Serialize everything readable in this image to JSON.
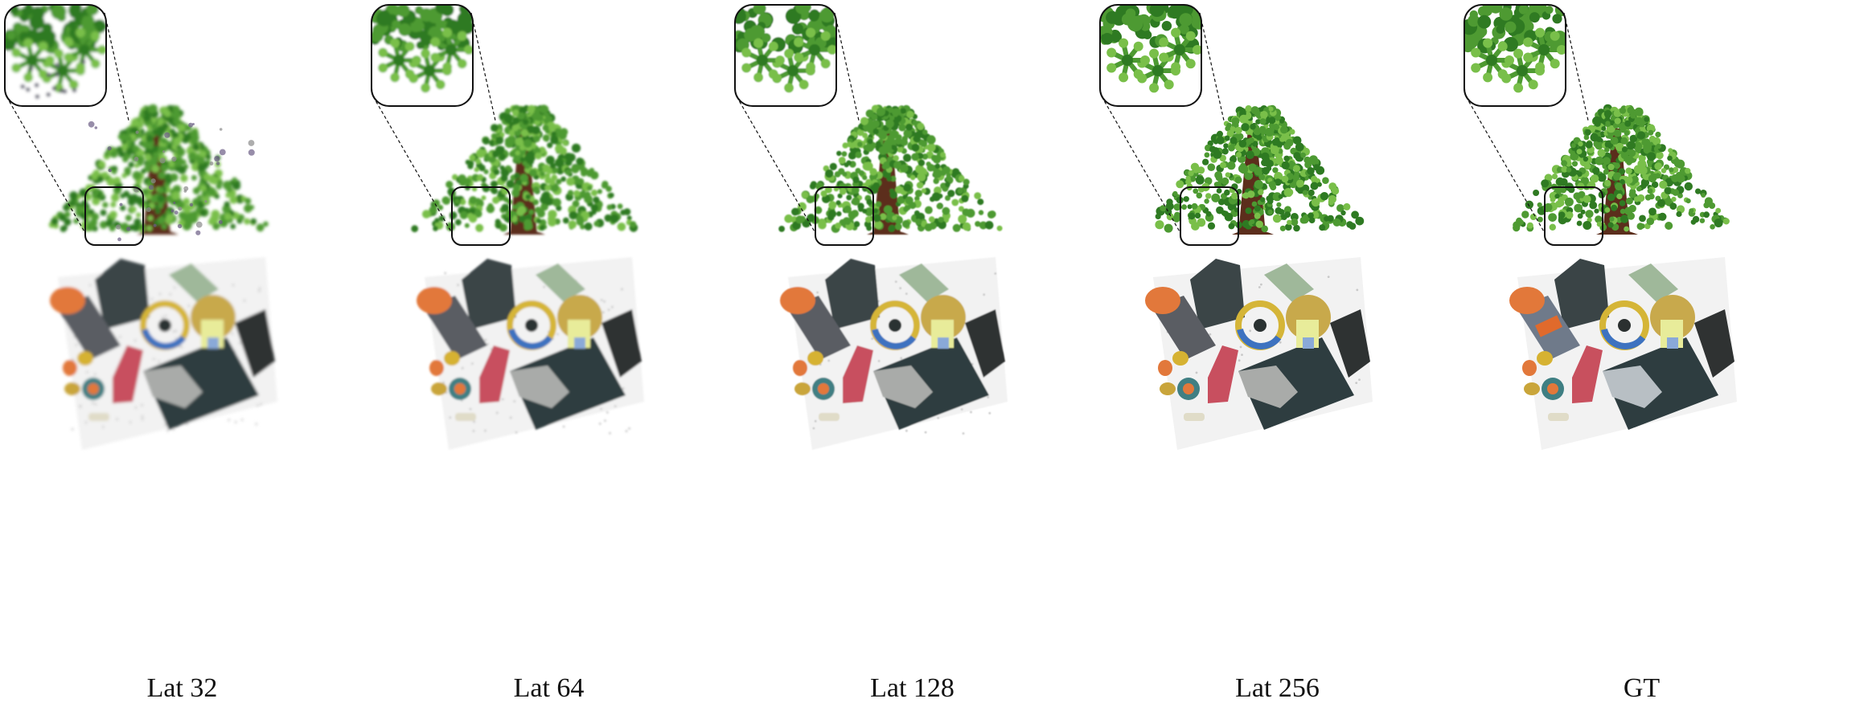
{
  "panels": [
    {
      "caption": "Lat 32",
      "quality": 0.25
    },
    {
      "caption": "Lat 64",
      "quality": 0.5
    },
    {
      "caption": "Lat 128",
      "quality": 0.7
    },
    {
      "caption": "Lat 256",
      "quality": 0.85
    },
    {
      "caption": "GT",
      "quality": 1.0
    }
  ],
  "colors": {
    "foliage_dark": "#2f7a22",
    "foliage": "#4e9a32",
    "foliage_light": "#79bf4a",
    "trunk": "#5b2e1c",
    "frame": "#111111",
    "floor": "#f2f2f2",
    "mat": "#2e3d40",
    "bottle_cap": "#e2783a",
    "pink_shoe": "#c8505e",
    "boot": "#3a4446"
  }
}
